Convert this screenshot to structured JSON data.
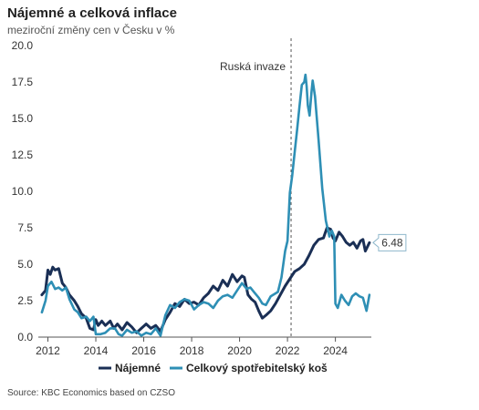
{
  "header": {
    "title": "Nájemné a celková inflace",
    "subtitle": "meziroční změny cen v Česku v  %"
  },
  "footer": {
    "source": "Source: KBC Economics based on CZSO"
  },
  "chart_data": {
    "type": "line",
    "title": "Nájemné a celková inflace",
    "subtitle": "meziroční změny cen v Česku v  %",
    "xlabel": "",
    "ylabel": "",
    "xlim": [
      2011.6,
      2025.5
    ],
    "ylim": [
      0,
      20
    ],
    "yticks": [
      "0.0",
      "2.5",
      "5.0",
      "7.5",
      "10.0",
      "12.5",
      "15.0",
      "17.5",
      "20.0"
    ],
    "xticks": [
      "2012",
      "2014",
      "2016",
      "2018",
      "2020",
      "2022",
      "2024"
    ],
    "grid": false,
    "legend_position": "bottom",
    "annotations": [
      {
        "text": "Ruská invaze",
        "x": 2022.15,
        "style": "dashed-vertical-line"
      },
      {
        "text": "6.48",
        "series": "Nájemné",
        "x": 2025.42,
        "y": 6.48
      }
    ],
    "series": [
      {
        "name": "Nájemné",
        "color": "#1a2f55",
        "points": [
          [
            2011.75,
            2.9
          ],
          [
            2011.9,
            3.2
          ],
          [
            2012.0,
            4.6
          ],
          [
            2012.1,
            4.3
          ],
          [
            2012.2,
            4.8
          ],
          [
            2012.3,
            4.6
          ],
          [
            2012.45,
            4.7
          ],
          [
            2012.6,
            3.7
          ],
          [
            2012.75,
            3.4
          ],
          [
            2012.9,
            2.9
          ],
          [
            2013.1,
            2.5
          ],
          [
            2013.25,
            2.1
          ],
          [
            2013.4,
            1.6
          ],
          [
            2013.6,
            1.3
          ],
          [
            2013.75,
            0.6
          ],
          [
            2013.9,
            0.5
          ],
          [
            2014.0,
            1.2
          ],
          [
            2014.1,
            0.8
          ],
          [
            2014.25,
            1.1
          ],
          [
            2014.4,
            0.8
          ],
          [
            2014.6,
            1.1
          ],
          [
            2014.75,
            0.6
          ],
          [
            2014.9,
            0.9
          ],
          [
            2015.1,
            0.5
          ],
          [
            2015.3,
            1.0
          ],
          [
            2015.5,
            0.7
          ],
          [
            2015.7,
            0.3
          ],
          [
            2015.9,
            0.6
          ],
          [
            2016.1,
            0.9
          ],
          [
            2016.3,
            0.6
          ],
          [
            2016.5,
            0.8
          ],
          [
            2016.7,
            0.4
          ],
          [
            2016.9,
            1.2
          ],
          [
            2017.1,
            1.7
          ],
          [
            2017.3,
            2.3
          ],
          [
            2017.5,
            2.1
          ],
          [
            2017.7,
            2.6
          ],
          [
            2017.9,
            2.3
          ],
          [
            2018.1,
            2.4
          ],
          [
            2018.3,
            2.2
          ],
          [
            2018.5,
            2.7
          ],
          [
            2018.7,
            3.0
          ],
          [
            2018.9,
            3.5
          ],
          [
            2019.1,
            3.2
          ],
          [
            2019.3,
            3.9
          ],
          [
            2019.5,
            3.5
          ],
          [
            2019.7,
            4.3
          ],
          [
            2019.9,
            3.8
          ],
          [
            2020.1,
            4.2
          ],
          [
            2020.2,
            4.1
          ],
          [
            2020.35,
            2.9
          ],
          [
            2020.5,
            2.6
          ],
          [
            2020.65,
            2.4
          ],
          [
            2020.8,
            1.8
          ],
          [
            2020.95,
            1.3
          ],
          [
            2021.1,
            1.5
          ],
          [
            2021.3,
            1.8
          ],
          [
            2021.5,
            2.3
          ],
          [
            2021.7,
            2.9
          ],
          [
            2021.9,
            3.5
          ],
          [
            2022.1,
            4.0
          ],
          [
            2022.3,
            4.5
          ],
          [
            2022.5,
            4.7
          ],
          [
            2022.7,
            5.0
          ],
          [
            2022.9,
            5.6
          ],
          [
            2023.1,
            6.3
          ],
          [
            2023.3,
            6.7
          ],
          [
            2023.5,
            6.8
          ],
          [
            2023.65,
            7.5
          ],
          [
            2023.8,
            7.4
          ],
          [
            2023.9,
            6.8
          ],
          [
            2024.0,
            6.6
          ],
          [
            2024.15,
            7.2
          ],
          [
            2024.3,
            6.9
          ],
          [
            2024.45,
            6.5
          ],
          [
            2024.6,
            6.3
          ],
          [
            2024.75,
            6.5
          ],
          [
            2024.9,
            6.1
          ],
          [
            2025.05,
            6.6
          ],
          [
            2025.15,
            6.7
          ],
          [
            2025.25,
            5.9
          ],
          [
            2025.42,
            6.48
          ]
        ]
      },
      {
        "name": "Celkový spotřebitelský koš",
        "color": "#2e8fb5",
        "points": [
          [
            2011.75,
            1.7
          ],
          [
            2011.9,
            2.5
          ],
          [
            2012.0,
            3.5
          ],
          [
            2012.15,
            3.8
          ],
          [
            2012.3,
            3.3
          ],
          [
            2012.45,
            3.4
          ],
          [
            2012.6,
            3.2
          ],
          [
            2012.75,
            3.4
          ],
          [
            2012.9,
            2.6
          ],
          [
            2013.1,
            1.9
          ],
          [
            2013.25,
            1.7
          ],
          [
            2013.4,
            1.3
          ],
          [
            2013.6,
            1.4
          ],
          [
            2013.75,
            1.1
          ],
          [
            2013.9,
            1.4
          ],
          [
            2014.0,
            0.2
          ],
          [
            2014.2,
            0.2
          ],
          [
            2014.4,
            0.3
          ],
          [
            2014.6,
            0.6
          ],
          [
            2014.8,
            0.6
          ],
          [
            2014.95,
            0.2
          ],
          [
            2015.1,
            0.1
          ],
          [
            2015.3,
            0.5
          ],
          [
            2015.5,
            0.3
          ],
          [
            2015.7,
            0.4
          ],
          [
            2015.9,
            0.1
          ],
          [
            2016.1,
            0.3
          ],
          [
            2016.3,
            0.2
          ],
          [
            2016.5,
            0.6
          ],
          [
            2016.7,
            0.1
          ],
          [
            2016.9,
            1.5
          ],
          [
            2017.1,
            2.2
          ],
          [
            2017.3,
            2.0
          ],
          [
            2017.5,
            2.4
          ],
          [
            2017.7,
            2.6
          ],
          [
            2017.9,
            2.5
          ],
          [
            2018.1,
            1.9
          ],
          [
            2018.3,
            2.2
          ],
          [
            2018.5,
            2.4
          ],
          [
            2018.7,
            2.3
          ],
          [
            2018.9,
            2.0
          ],
          [
            2019.1,
            2.5
          ],
          [
            2019.3,
            2.8
          ],
          [
            2019.5,
            2.9
          ],
          [
            2019.7,
            2.7
          ],
          [
            2019.9,
            3.2
          ],
          [
            2020.1,
            3.7
          ],
          [
            2020.3,
            3.3
          ],
          [
            2020.45,
            3.4
          ],
          [
            2020.6,
            3.1
          ],
          [
            2020.8,
            2.7
          ],
          [
            2020.95,
            2.3
          ],
          [
            2021.1,
            2.2
          ],
          [
            2021.3,
            2.8
          ],
          [
            2021.5,
            3.0
          ],
          [
            2021.6,
            3.1
          ],
          [
            2021.75,
            4.1
          ],
          [
            2021.9,
            5.9
          ],
          [
            2022.0,
            6.6
          ],
          [
            2022.1,
            9.9
          ],
          [
            2022.2,
            11.1
          ],
          [
            2022.3,
            12.7
          ],
          [
            2022.4,
            14.2
          ],
          [
            2022.5,
            15.8
          ],
          [
            2022.6,
            17.3
          ],
          [
            2022.7,
            17.5
          ],
          [
            2022.75,
            18.0
          ],
          [
            2022.8,
            17.2
          ],
          [
            2022.85,
            15.9
          ],
          [
            2022.92,
            15.2
          ],
          [
            2023.0,
            16.8
          ],
          [
            2023.05,
            17.6
          ],
          [
            2023.15,
            16.5
          ],
          [
            2023.3,
            13.5
          ],
          [
            2023.45,
            10.2
          ],
          [
            2023.6,
            8.0
          ],
          [
            2023.75,
            6.9
          ],
          [
            2023.85,
            7.3
          ],
          [
            2023.95,
            6.9
          ],
          [
            2024.0,
            2.3
          ],
          [
            2024.1,
            2.0
          ],
          [
            2024.25,
            2.9
          ],
          [
            2024.4,
            2.5
          ],
          [
            2024.55,
            2.2
          ],
          [
            2024.7,
            2.8
          ],
          [
            2024.85,
            3.0
          ],
          [
            2025.0,
            2.8
          ],
          [
            2025.15,
            2.7
          ],
          [
            2025.3,
            1.8
          ],
          [
            2025.42,
            2.9
          ]
        ]
      }
    ]
  }
}
